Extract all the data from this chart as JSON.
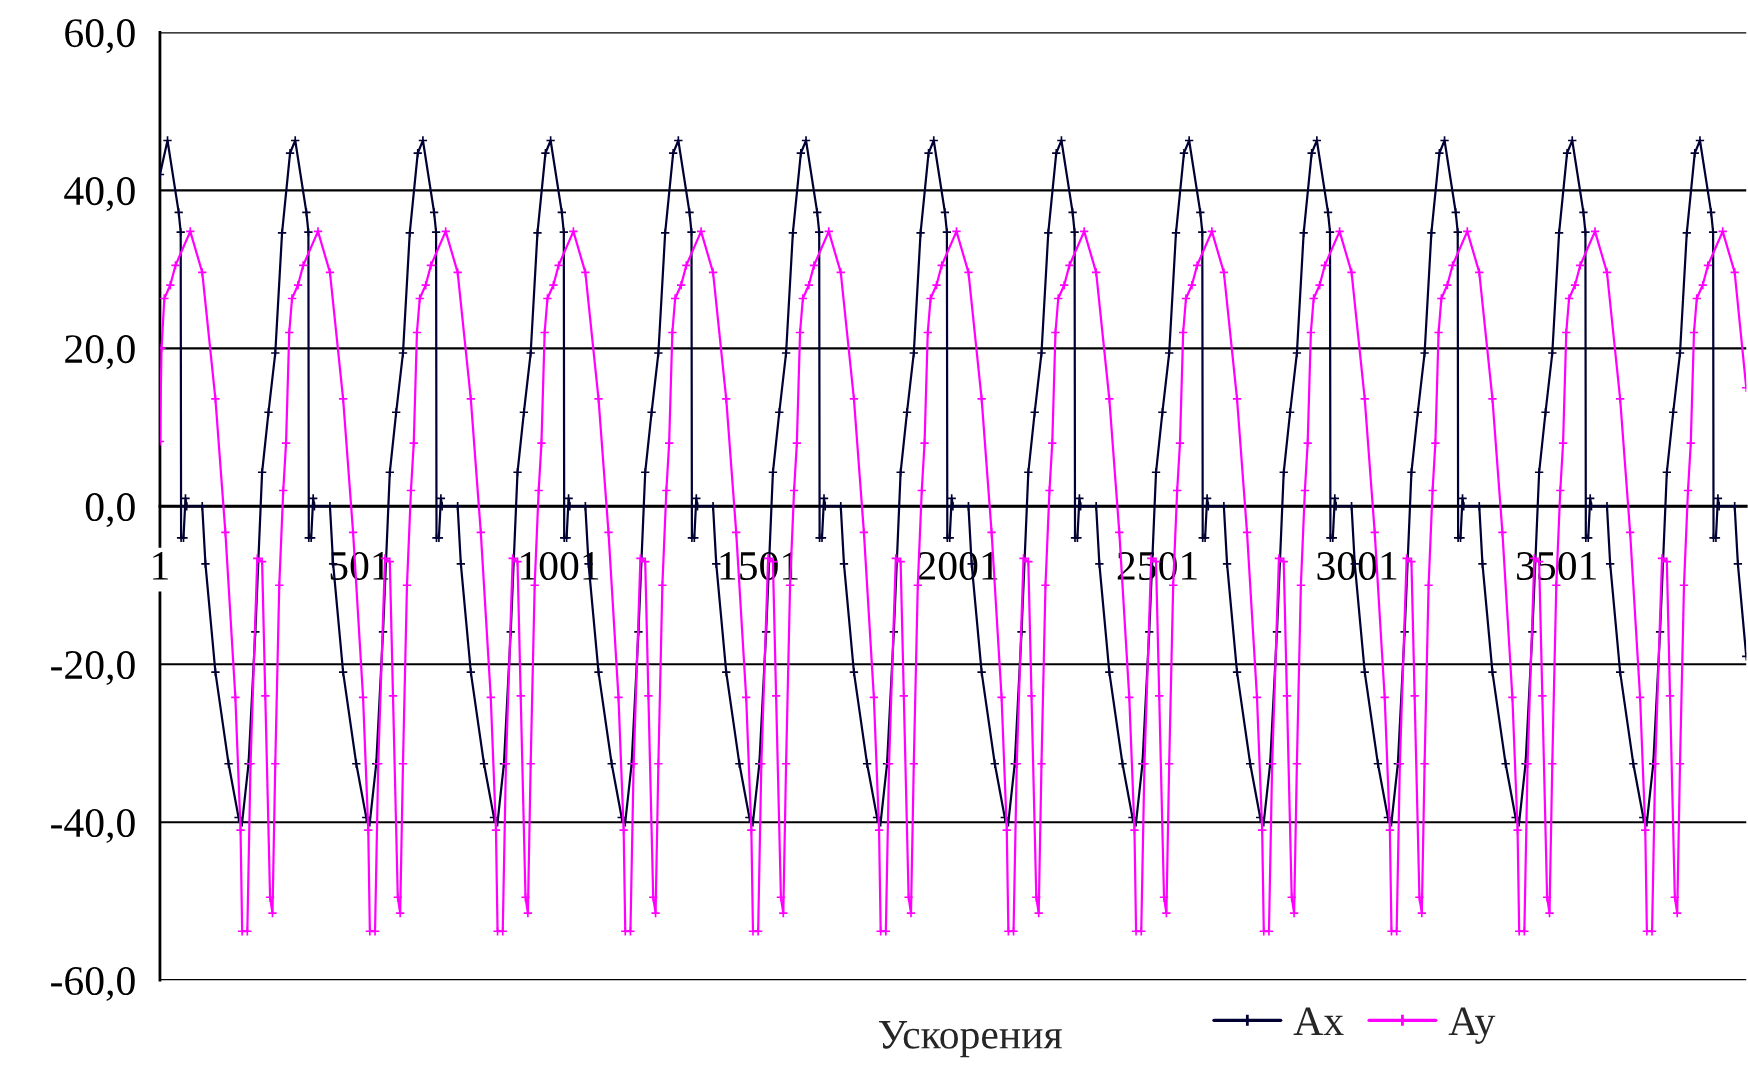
{
  "chart_data": {
    "type": "line",
    "xlabel": "Ускорения",
    "xlim": [
      1,
      3976
    ],
    "xticks": [
      1,
      501,
      1001,
      1501,
      2001,
      2501,
      3001,
      3501
    ],
    "ylim": [
      -60,
      60
    ],
    "yticks": [
      {
        "value": -60,
        "label": "-60,0"
      },
      {
        "value": -40,
        "label": "-40,0"
      },
      {
        "value": -20,
        "label": "-20,0"
      },
      {
        "value": 0,
        "label": "0,0"
      },
      {
        "value": 20,
        "label": "20,0"
      },
      {
        "value": 40,
        "label": "40,0"
      },
      {
        "value": 60,
        "label": "60,0"
      }
    ],
    "grid": "y",
    "legend": "bottom",
    "marker": "cross",
    "line_style": "solid",
    "series": [
      {
        "name": "Ax",
        "color": "#000033",
        "x": [
          1,
          20,
          48,
          53,
          54,
          60,
          65,
          68,
          107,
          115,
          140,
          173,
          198,
          207,
          223,
          240,
          257,
          273,
          290,
          307,
          327,
          340,
          368,
          373,
          374,
          380,
          385,
          388,
          427,
          435,
          460,
          493,
          518,
          527,
          543,
          560,
          577,
          593,
          610,
          627,
          647,
          660,
          688,
          693,
          694,
          700,
          705,
          708,
          747,
          755,
          780,
          813,
          838,
          847,
          863,
          880,
          897,
          913,
          930,
          947,
          967,
          980,
          1008,
          1013,
          1014,
          1020,
          1025,
          1028,
          1067,
          1075,
          1100,
          1133,
          1158,
          1167,
          1183,
          1200,
          1217,
          1233,
          1250,
          1267,
          1287,
          1300,
          1328,
          1333,
          1334,
          1340,
          1345,
          1348,
          1387,
          1395,
          1420,
          1453,
          1478,
          1487,
          1503,
          1520,
          1537,
          1553,
          1570,
          1587,
          1607,
          1620,
          1648,
          1653,
          1654,
          1660,
          1665,
          1668,
          1707,
          1715,
          1740,
          1773,
          1798,
          1807,
          1823,
          1840,
          1857,
          1873,
          1890,
          1907,
          1927,
          1940,
          1968,
          1973,
          1974,
          1980,
          1985,
          1988,
          2027,
          2035,
          2060,
          2093,
          2118,
          2127,
          2143,
          2160,
          2177,
          2193,
          2210,
          2227,
          2247,
          2260,
          2288,
          2293,
          2294,
          2300,
          2305,
          2308,
          2347,
          2355,
          2380,
          2413,
          2438,
          2447,
          2463,
          2480,
          2497,
          2513,
          2530,
          2547,
          2567,
          2580,
          2608,
          2613,
          2614,
          2620,
          2625,
          2628,
          2667,
          2675,
          2700,
          2733,
          2758,
          2767,
          2783,
          2800,
          2817,
          2833,
          2850,
          2867,
          2887,
          2900,
          2928,
          2933,
          2934,
          2940,
          2945,
          2948,
          2987,
          2995,
          3020,
          3053,
          3078,
          3087,
          3103,
          3120,
          3137,
          3153,
          3170,
          3187,
          3207,
          3220,
          3248,
          3253,
          3254,
          3260,
          3265,
          3268,
          3307,
          3315,
          3340,
          3373,
          3398,
          3407,
          3423,
          3440,
          3457,
          3473,
          3490,
          3507,
          3527,
          3540,
          3568,
          3573,
          3574,
          3580,
          3585,
          3588,
          3627,
          3635,
          3660,
          3693,
          3718,
          3727,
          3743,
          3760,
          3777,
          3793,
          3810,
          3827,
          3847,
          3860,
          3888,
          3893,
          3894,
          3900,
          3905,
          3908,
          3947,
          3955,
          3976
        ],
        "values": [
          42,
          46.3,
          37.2,
          34.7,
          -4,
          -4,
          1,
          0,
          0,
          -7.3,
          -21,
          -32.6,
          -39.4,
          -40,
          -32.6,
          -15.9,
          4.3,
          11.9,
          19.4,
          34.6,
          44.7,
          46.3,
          37.2,
          34.7,
          -4,
          -4,
          1,
          0,
          0,
          -7.3,
          -21,
          -32.6,
          -39.4,
          -40,
          -32.6,
          -15.9,
          4.3,
          11.9,
          19.4,
          34.6,
          44.7,
          46.3,
          37.2,
          34.7,
          -4,
          -4,
          1,
          0,
          0,
          -7.3,
          -21,
          -32.6,
          -39.4,
          -40,
          -32.6,
          -15.9,
          4.3,
          11.9,
          19.4,
          34.6,
          44.7,
          46.3,
          37.2,
          34.7,
          -4,
          -4,
          1,
          0,
          0,
          -7.3,
          -21,
          -32.6,
          -39.4,
          -40,
          -32.6,
          -15.9,
          4.3,
          11.9,
          19.4,
          34.6,
          44.7,
          46.3,
          37.2,
          34.7,
          -4,
          -4,
          1,
          0,
          0,
          -7.3,
          -21,
          -32.6,
          -39.4,
          -40,
          -32.6,
          -15.9,
          4.3,
          11.9,
          19.4,
          34.6,
          44.7,
          46.3,
          37.2,
          34.7,
          -4,
          -4,
          1,
          0,
          0,
          -7.3,
          -21,
          -32.6,
          -39.4,
          -40,
          -32.6,
          -15.9,
          4.3,
          11.9,
          19.4,
          34.6,
          44.7,
          46.3,
          37.2,
          34.7,
          -4,
          -4,
          1,
          0,
          0,
          -7.3,
          -21,
          -32.6,
          -39.4,
          -40,
          -32.6,
          -15.9,
          4.3,
          11.9,
          19.4,
          34.6,
          44.7,
          46.3,
          37.2,
          34.7,
          -4,
          -4,
          1,
          0,
          0,
          -7.3,
          -21,
          -32.6,
          -39.4,
          -40,
          -32.6,
          -15.9,
          4.3,
          11.9,
          19.4,
          34.6,
          44.7,
          46.3,
          37.2,
          34.7,
          -4,
          -4,
          1,
          0,
          0,
          -7.3,
          -21,
          -32.6,
          -39.4,
          -40,
          -32.6,
          -15.9,
          4.3,
          11.9,
          19.4,
          34.6,
          44.7,
          46.3,
          37.2,
          34.7,
          -4,
          -4,
          1,
          0,
          0,
          -7.3,
          -21,
          -32.6,
          -39.4,
          -40,
          -32.6,
          -15.9,
          4.3,
          11.9,
          19.4,
          34.6,
          44.7,
          46.3,
          37.2,
          34.7,
          -4,
          -4,
          1,
          0,
          0,
          -7.3,
          -21,
          -32.6,
          -39.4,
          -40,
          -32.6,
          -15.9,
          4.3,
          11.9,
          19.4,
          34.6,
          44.7,
          46.3,
          37.2,
          34.7,
          -4,
          -4,
          1,
          0,
          0,
          -7.3,
          -21,
          -32.6,
          -39.4,
          -40,
          -32.6,
          -15.9,
          4.3,
          11.9,
          19.4,
          34.6,
          44.7,
          46.3,
          37.2,
          34.7,
          -4,
          -4,
          1,
          0,
          0,
          -7.3,
          -19
        ]
      },
      {
        "name": "Ay",
        "color": "#ff00ff",
        "x": [
          1,
          5,
          12,
          27,
          40,
          77,
          107,
          140,
          165,
          190,
          203,
          207,
          220,
          228,
          245,
          257,
          265,
          277,
          283,
          290,
          300,
          310,
          317,
          325,
          332,
          347,
          360,
          397,
          427,
          460,
          485,
          510,
          523,
          527,
          540,
          548,
          565,
          577,
          585,
          597,
          603,
          610,
          620,
          630,
          637,
          645,
          652,
          667,
          680,
          717,
          747,
          780,
          805,
          830,
          843,
          847,
          860,
          868,
          885,
          897,
          905,
          917,
          923,
          930,
          940,
          950,
          957,
          965,
          972,
          987,
          1000,
          1037,
          1067,
          1100,
          1125,
          1150,
          1163,
          1167,
          1180,
          1188,
          1205,
          1217,
          1225,
          1237,
          1243,
          1250,
          1260,
          1270,
          1277,
          1285,
          1292,
          1307,
          1320,
          1357,
          1387,
          1420,
          1445,
          1470,
          1483,
          1487,
          1500,
          1508,
          1525,
          1537,
          1545,
          1557,
          1563,
          1570,
          1580,
          1590,
          1597,
          1605,
          1612,
          1627,
          1640,
          1677,
          1707,
          1740,
          1765,
          1790,
          1803,
          1807,
          1820,
          1828,
          1845,
          1857,
          1865,
          1877,
          1883,
          1890,
          1900,
          1910,
          1917,
          1925,
          1932,
          1947,
          1960,
          1997,
          2027,
          2060,
          2085,
          2110,
          2123,
          2127,
          2140,
          2148,
          2165,
          2177,
          2185,
          2197,
          2203,
          2210,
          2220,
          2230,
          2237,
          2245,
          2252,
          2267,
          2280,
          2317,
          2347,
          2380,
          2405,
          2430,
          2443,
          2447,
          2460,
          2468,
          2485,
          2497,
          2505,
          2517,
          2523,
          2530,
          2540,
          2550,
          2557,
          2565,
          2572,
          2587,
          2600,
          2637,
          2667,
          2700,
          2725,
          2750,
          2763,
          2767,
          2780,
          2788,
          2805,
          2817,
          2825,
          2837,
          2843,
          2850,
          2860,
          2870,
          2877,
          2885,
          2892,
          2907,
          2920,
          2957,
          2987,
          3020,
          3045,
          3070,
          3083,
          3087,
          3100,
          3108,
          3125,
          3137,
          3145,
          3157,
          3163,
          3170,
          3180,
          3190,
          3197,
          3205,
          3212,
          3227,
          3240,
          3277,
          3307,
          3340,
          3365,
          3390,
          3403,
          3407,
          3420,
          3428,
          3445,
          3457,
          3465,
          3477,
          3483,
          3490,
          3500,
          3510,
          3517,
          3525,
          3532,
          3547,
          3560,
          3597,
          3627,
          3660,
          3685,
          3710,
          3723,
          3727,
          3740,
          3748,
          3765,
          3777,
          3785,
          3797,
          3803,
          3810,
          3820,
          3830,
          3837,
          3845,
          3852,
          3867,
          3880,
          3917,
          3947,
          3976
        ],
        "values": [
          8.2,
          20,
          26.3,
          28,
          30.5,
          34.8,
          29.6,
          13.6,
          -3.3,
          -24.2,
          -41,
          -53.8,
          -53.8,
          -32.6,
          -6.6,
          -7,
          -24,
          -49.5,
          -51.5,
          -32.6,
          -10,
          2,
          8,
          22,
          26.3,
          28,
          30.5,
          34.8,
          29.6,
          13.6,
          -3.3,
          -24.2,
          -41,
          -53.8,
          -53.8,
          -32.6,
          -6.6,
          -7,
          -24,
          -49.5,
          -51.5,
          -32.6,
          -10,
          2,
          8,
          22,
          26.3,
          28,
          30.5,
          34.8,
          29.6,
          13.6,
          -3.3,
          -24.2,
          -41,
          -53.8,
          -53.8,
          -32.6,
          -6.6,
          -7,
          -24,
          -49.5,
          -51.5,
          -32.6,
          -10,
          2,
          8,
          22,
          26.3,
          28,
          30.5,
          34.8,
          29.6,
          13.6,
          -3.3,
          -24.2,
          -41,
          -53.8,
          -53.8,
          -32.6,
          -6.6,
          -7,
          -24,
          -49.5,
          -51.5,
          -32.6,
          -10,
          2,
          8,
          22,
          26.3,
          28,
          30.5,
          34.8,
          29.6,
          13.6,
          -3.3,
          -24.2,
          -41,
          -53.8,
          -53.8,
          -32.6,
          -6.6,
          -7,
          -24,
          -49.5,
          -51.5,
          -32.6,
          -10,
          2,
          8,
          22,
          26.3,
          28,
          30.5,
          34.8,
          29.6,
          13.6,
          -3.3,
          -24.2,
          -41,
          -53.8,
          -53.8,
          -32.6,
          -6.6,
          -7,
          -24,
          -49.5,
          -51.5,
          -32.6,
          -10,
          2,
          8,
          22,
          26.3,
          28,
          30.5,
          34.8,
          29.6,
          13.6,
          -3.3,
          -24.2,
          -41,
          -53.8,
          -53.8,
          -32.6,
          -6.6,
          -7,
          -24,
          -49.5,
          -51.5,
          -32.6,
          -10,
          2,
          8,
          22,
          26.3,
          28,
          30.5,
          34.8,
          29.6,
          13.6,
          -3.3,
          -24.2,
          -41,
          -53.8,
          -53.8,
          -32.6,
          -6.6,
          -7,
          -24,
          -49.5,
          -51.5,
          -32.6,
          -10,
          2,
          8,
          22,
          26.3,
          28,
          30.5,
          34.8,
          29.6,
          13.6,
          -3.3,
          -24.2,
          -41,
          -53.8,
          -53.8,
          -32.6,
          -6.6,
          -7,
          -24,
          -49.5,
          -51.5,
          -32.6,
          -10,
          2,
          8,
          22,
          26.3,
          28,
          30.5,
          34.8,
          29.6,
          13.6,
          -3.3,
          -24.2,
          -41,
          -53.8,
          -53.8,
          -32.6,
          -6.6,
          -7,
          -24,
          -49.5,
          -51.5,
          -32.6,
          -10,
          2,
          8,
          22,
          26.3,
          28,
          30.5,
          34.8,
          29.6,
          13.6,
          -3.3,
          -24.2,
          -41,
          -53.8,
          -53.8,
          -32.6,
          -6.6,
          -7,
          -24,
          -49.5,
          -51.5,
          -32.6,
          -10,
          2,
          8,
          22,
          26.3,
          28,
          30.5,
          34.8,
          29.6,
          13.6,
          -3.3,
          -24.2,
          -41,
          -53.8,
          -53.8,
          -32.6,
          -6.6,
          -7,
          -24,
          -49.5,
          -51.5,
          -32.6,
          -10,
          2,
          8,
          22,
          26.3,
          28,
          30.5,
          34.8,
          29.6,
          15
        ]
      }
    ]
  }
}
